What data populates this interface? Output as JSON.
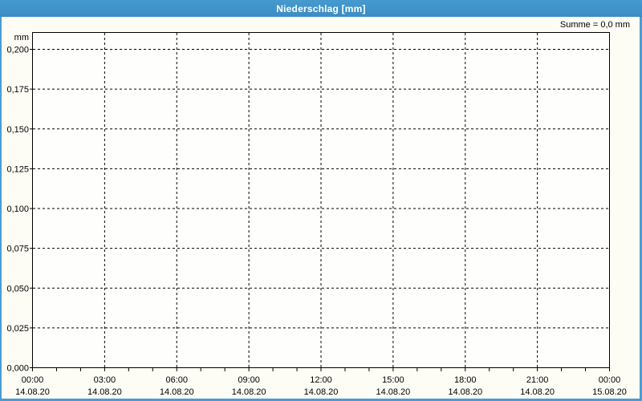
{
  "window": {
    "title": "Niederschlag [mm]"
  },
  "summary_label": "Summe = 0,0 mm",
  "chart_data": {
    "type": "bar",
    "title": "Niederschlag [mm]",
    "xlabel": "",
    "ylabel": "mm",
    "total_precipitation_mm": 0.0,
    "series": [
      {
        "name": "Niederschlag",
        "values": []
      }
    ],
    "y_axis": {
      "min": 0.0,
      "max_visible_tick": 0.2,
      "ylim": [
        0.0,
        0.21
      ],
      "step": 0.025,
      "tick_labels": [
        "0,000",
        "0,025",
        "0,050",
        "0,075",
        "0,100",
        "0,125",
        "0,150",
        "0,175",
        "0,200"
      ]
    },
    "x_axis": {
      "range_hours": 24,
      "minor_tick_every_hours": 1,
      "major_tick_every_hours": 3,
      "major_ticks": [
        {
          "time": "00:00",
          "date": "14.08.20"
        },
        {
          "time": "03:00",
          "date": "14.08.20"
        },
        {
          "time": "06:00",
          "date": "14.08.20"
        },
        {
          "time": "09:00",
          "date": "14.08.20"
        },
        {
          "time": "12:00",
          "date": "14.08.20"
        },
        {
          "time": "15:00",
          "date": "14.08.20"
        },
        {
          "time": "18:00",
          "date": "14.08.20"
        },
        {
          "time": "21:00",
          "date": "14.08.20"
        },
        {
          "time": "00:00",
          "date": "15.08.20"
        }
      ]
    },
    "grid": {
      "style": "dashed",
      "color": "#000000"
    },
    "legend": "none"
  },
  "colors": {
    "titlebar": "#3f90c7",
    "titlebar_text": "#ffffff",
    "window_border": "#4a9cd3",
    "background": "#fdfdf6",
    "plot_background": "#fefefc",
    "axis": "#000000",
    "text": "#000000"
  }
}
